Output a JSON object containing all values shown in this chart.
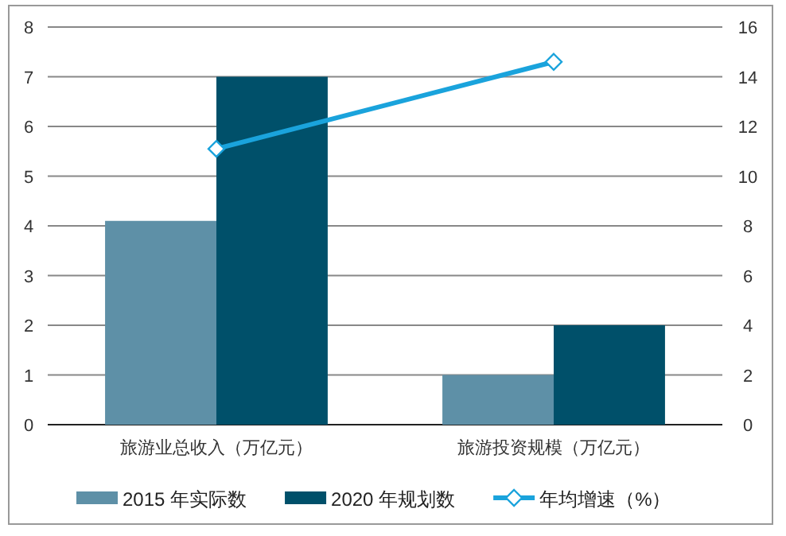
{
  "chart_data": {
    "type": "bar",
    "categories": [
      "旅游业总收入（万亿元）",
      "旅游投资规模（万亿元）"
    ],
    "series": [
      {
        "name": "2015 年实际数",
        "color": "#5e90a7",
        "values": [
          4.1,
          1.0
        ]
      },
      {
        "name": "2020 年规划数",
        "color": "#00506a",
        "values": [
          7,
          2
        ]
      },
      {
        "name": "年均增速（%）",
        "type": "line",
        "axis": "y2",
        "color": "#1aa3dc",
        "marker": "diamond",
        "values": [
          11.1,
          14.6
        ]
      }
    ],
    "ylim": [
      0,
      8
    ],
    "yticks": [
      0,
      1,
      2,
      3,
      4,
      5,
      6,
      7,
      8
    ],
    "y2lim": [
      0,
      16
    ],
    "y2ticks": [
      0,
      2,
      4,
      6,
      8,
      10,
      12,
      14,
      16
    ],
    "grid": "y",
    "legend": "bottom"
  }
}
